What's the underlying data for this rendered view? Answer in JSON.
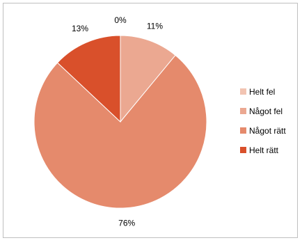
{
  "chart_data": {
    "type": "pie",
    "categories": [
      "Helt fel",
      "Något fel",
      "Något rätt",
      "Helt rätt"
    ],
    "values": [
      0,
      11,
      76,
      13
    ],
    "value_labels": [
      "0%",
      "11%",
      "76%",
      "13%"
    ],
    "colors": [
      "#f2c4b2",
      "#eba891",
      "#e58a6c",
      "#d9502b"
    ],
    "legend": "right",
    "start_angle_deg": 0,
    "direction": "clockwise"
  }
}
